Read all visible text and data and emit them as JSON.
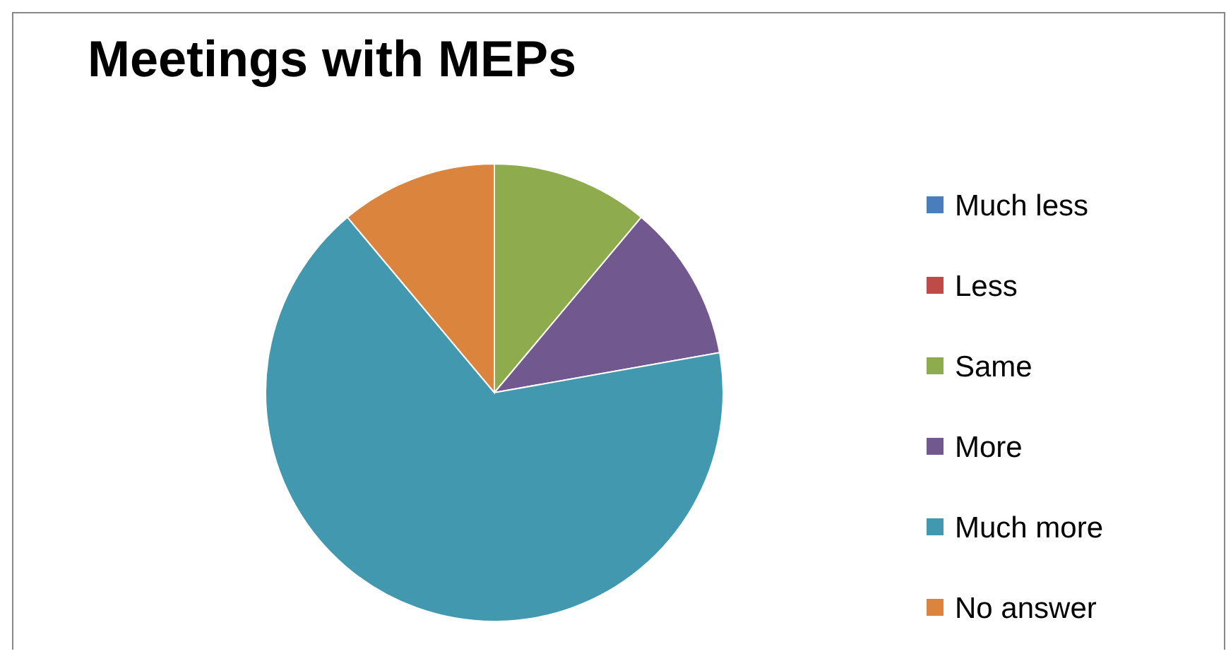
{
  "chart_data": {
    "type": "pie",
    "title": "Meetings with MEPs",
    "categories": [
      "Much less",
      "Less",
      "Same",
      "More",
      "Much more",
      "No answer"
    ],
    "values": [
      0,
      0,
      11.1,
      11.1,
      66.7,
      11.1
    ],
    "colors": [
      "#4a7ebb",
      "#be4b48",
      "#8eac4d",
      "#71588f",
      "#4198af",
      "#db843d"
    ],
    "legend": "right"
  }
}
